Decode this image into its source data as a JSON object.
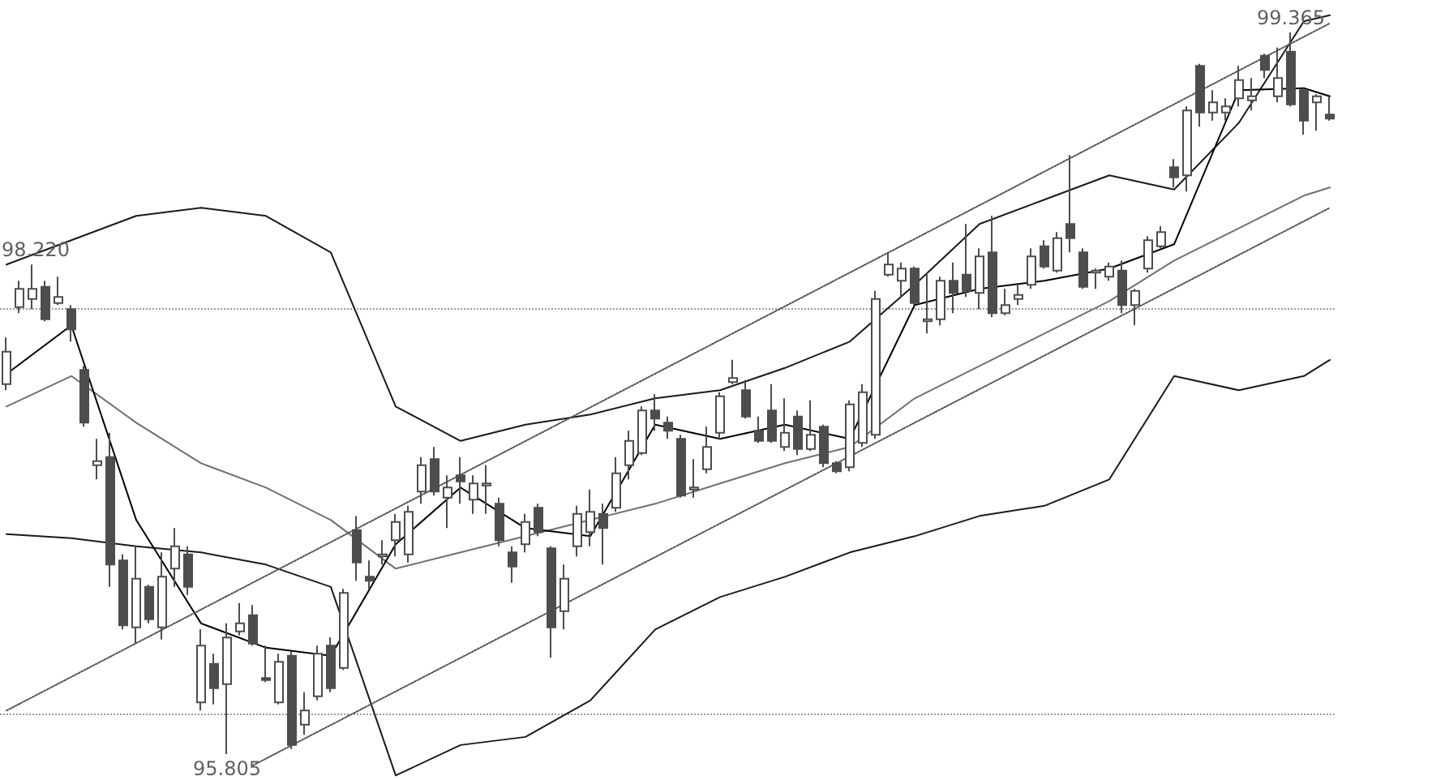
{
  "chart_data": {
    "type": "candlestick",
    "categories": [
      null,
      null,
      null,
      null,
      null,
      null,
      null,
      null,
      null,
      null,
      null,
      null,
      null,
      null,
      null,
      null,
      null,
      null,
      null,
      null,
      null,
      null,
      null,
      null,
      null,
      null,
      null,
      null,
      null,
      null,
      null,
      null,
      null,
      null,
      null,
      null,
      null,
      null,
      null,
      null,
      null,
      null,
      null,
      null,
      null,
      null,
      null,
      null,
      null,
      null,
      null,
      null,
      null,
      null,
      null,
      null,
      null,
      null,
      null,
      null,
      null,
      null,
      null,
      null,
      null,
      null,
      null,
      null,
      null,
      null,
      null,
      null,
      null,
      null,
      null,
      null,
      null,
      null,
      null,
      null,
      null,
      null,
      null,
      null,
      null,
      null,
      null,
      null,
      null,
      null,
      null,
      null,
      null,
      null,
      null,
      null,
      null,
      null,
      null,
      null,
      null,
      null,
      null
    ],
    "yticks": [
      {
        "value": 96,
        "label": null
      },
      {
        "value": 98,
        "label": null
      }
    ],
    "grid": "y",
    "tick_labels": false,
    "marker": "none",
    "annotations": [
      {
        "text": "98.220",
        "y": 98.22
      },
      {
        "text": "99.365",
        "y": 99.365
      },
      {
        "text": "95.805",
        "y": 95.805
      }
    ],
    "series": [
      {
        "type": "line",
        "color": "#1a1a1a",
        "values": [
          98.22,
          null,
          null,
          null,
          null,
          98.34,
          null,
          null,
          null,
          null,
          98.46,
          null,
          null,
          null,
          null,
          98.5,
          null,
          null,
          null,
          null,
          98.46,
          null,
          null,
          null,
          null,
          98.28,
          null,
          null,
          null,
          null,
          97.52,
          null,
          null,
          null,
          null,
          97.35,
          null,
          null,
          null,
          null,
          97.43,
          null,
          null,
          null,
          null,
          97.48,
          null,
          null,
          null,
          null,
          97.56,
          null,
          null,
          null,
          null,
          97.6,
          null,
          null,
          null,
          null,
          97.71,
          null,
          null,
          null,
          null,
          97.84,
          null,
          null,
          null,
          null,
          98.12,
          null,
          null,
          null,
          null,
          98.42,
          null,
          null,
          null,
          null,
          98.54,
          null,
          null,
          null,
          null,
          98.66,
          null,
          null,
          null,
          null,
          98.59,
          null,
          null,
          null,
          null,
          98.92,
          null,
          null,
          null,
          null,
          99.42,
          null,
          99.45
        ]
      },
      {
        "type": "line",
        "color": "#1a1a1a",
        "values": [
          96.89,
          null,
          null,
          null,
          null,
          96.87,
          null,
          null,
          null,
          null,
          96.83,
          null,
          null,
          null,
          null,
          96.8,
          null,
          null,
          null,
          null,
          96.74,
          null,
          null,
          null,
          null,
          96.63,
          null,
          null,
          null,
          null,
          95.7,
          null,
          null,
          null,
          null,
          95.85,
          null,
          null,
          null,
          null,
          95.89,
          null,
          null,
          null,
          null,
          96.07,
          null,
          null,
          null,
          null,
          96.42,
          null,
          null,
          null,
          null,
          96.58,
          null,
          null,
          null,
          null,
          96.68,
          null,
          null,
          null,
          null,
          96.8,
          null,
          null,
          null,
          null,
          96.88,
          null,
          null,
          null,
          null,
          96.98,
          null,
          null,
          null,
          null,
          97.03,
          null,
          null,
          null,
          null,
          97.16,
          null,
          null,
          null,
          null,
          97.67,
          null,
          null,
          null,
          null,
          97.6,
          null,
          null,
          null,
          null,
          97.67,
          null,
          97.75
        ]
      },
      {
        "type": "line",
        "color": "#707070",
        "values": [
          97.52,
          null,
          null,
          null,
          null,
          97.67,
          null,
          null,
          null,
          null,
          97.44,
          null,
          null,
          null,
          null,
          97.24,
          null,
          null,
          null,
          null,
          97.12,
          null,
          null,
          null,
          null,
          96.96,
          null,
          null,
          null,
          null,
          96.72,
          null,
          null,
          null,
          null,
          96.8,
          null,
          null,
          null,
          null,
          96.88,
          null,
          null,
          null,
          null,
          96.96,
          null,
          null,
          null,
          null,
          97.04,
          null,
          null,
          null,
          null,
          97.14,
          null,
          null,
          null,
          null,
          97.24,
          null,
          null,
          null,
          null,
          97.32,
          null,
          null,
          null,
          null,
          97.56,
          null,
          null,
          null,
          null,
          97.72,
          null,
          null,
          null,
          null,
          97.88,
          null,
          null,
          null,
          null,
          98.04,
          null,
          null,
          null,
          null,
          98.24,
          null,
          null,
          null,
          null,
          98.4,
          null,
          null,
          null,
          null,
          98.56,
          null,
          98.6
        ]
      },
      {
        "type": "line",
        "color": "#000000",
        "values": [
          97.68,
          null,
          null,
          null,
          null,
          97.92,
          null,
          null,
          null,
          null,
          96.96,
          null,
          null,
          null,
          null,
          96.45,
          null,
          null,
          null,
          null,
          96.33,
          null,
          null,
          null,
          null,
          96.29,
          null,
          null,
          null,
          null,
          96.84,
          null,
          null,
          null,
          null,
          97.12,
          null,
          null,
          null,
          null,
          96.92,
          null,
          null,
          null,
          null,
          96.88,
          null,
          null,
          null,
          null,
          97.43,
          null,
          null,
          null,
          null,
          97.36,
          null,
          null,
          null,
          null,
          97.43,
          null,
          null,
          null,
          null,
          97.36,
          null,
          null,
          null,
          null,
          98.02,
          null,
          null,
          null,
          null,
          98.1,
          null,
          null,
          null,
          null,
          98.14,
          null,
          null,
          null,
          null,
          98.2,
          null,
          null,
          null,
          null,
          98.32,
          null,
          null,
          null,
          null,
          99.08,
          null,
          null,
          null,
          null,
          99.09,
          null,
          99.05
        ]
      },
      {
        "type": "line",
        "color": "#555555",
        "line_style": "dotted",
        "values": [
          96.02,
          null,
          null,
          null,
          null,
          null,
          null,
          null,
          null,
          null,
          null,
          null,
          null,
          null,
          null,
          null,
          null,
          null,
          null,
          null,
          null,
          null,
          null,
          null,
          null,
          null,
          null,
          null,
          null,
          null,
          null,
          null,
          null,
          null,
          null,
          null,
          null,
          null,
          null,
          null,
          null,
          null,
          null,
          null,
          null,
          null,
          null,
          null,
          null,
          null,
          null,
          null,
          null,
          null,
          null,
          null,
          null,
          null,
          null,
          null,
          null,
          null,
          null,
          null,
          null,
          null,
          null,
          null,
          null,
          null,
          null,
          null,
          null,
          null,
          null,
          null,
          null,
          null,
          null,
          null,
          null,
          null,
          null,
          null,
          null,
          null,
          null,
          null,
          null,
          null,
          null,
          null,
          null,
          null,
          null,
          null,
          null,
          null,
          null,
          null,
          null,
          null,
          99.41
        ]
      },
      {
        "type": "line",
        "color": "#555555",
        "line_style": "dotted",
        "values": [
          null,
          null,
          null,
          null,
          null,
          null,
          null,
          null,
          null,
          null,
          null,
          null,
          null,
          null,
          null,
          null,
          null,
          null,
          null,
          95.75,
          null,
          null,
          null,
          null,
          null,
          null,
          null,
          null,
          null,
          null,
          null,
          null,
          null,
          null,
          null,
          null,
          null,
          null,
          null,
          null,
          null,
          null,
          null,
          null,
          null,
          null,
          null,
          null,
          null,
          null,
          null,
          null,
          null,
          null,
          null,
          null,
          null,
          null,
          null,
          null,
          null,
          null,
          null,
          null,
          null,
          null,
          null,
          null,
          null,
          null,
          null,
          null,
          null,
          null,
          null,
          null,
          null,
          null,
          null,
          null,
          null,
          null,
          null,
          null,
          null,
          null,
          null,
          null,
          null,
          null,
          null,
          null,
          null,
          null,
          null,
          null,
          null,
          null,
          null,
          null,
          null,
          null,
          98.5
        ]
      },
      {
        "color": "#4d4d4d",
        "ohlc": [
          [
            97.63,
            97.86,
            97.6,
            97.79
          ],
          [
            98.01,
            98.14,
            97.98,
            98.1
          ],
          [
            98.05,
            98.22,
            98.0,
            98.1
          ],
          [
            98.11,
            98.14,
            97.94,
            97.95
          ],
          [
            98.03,
            98.16,
            98.02,
            98.06
          ],
          [
            98.0,
            98.02,
            97.84,
            97.9
          ],
          [
            97.7,
            97.72,
            97.42,
            97.44
          ],
          [
            97.23,
            97.36,
            97.16,
            97.25
          ],
          [
            97.27,
            97.39,
            96.63,
            96.74
          ],
          [
            96.76,
            96.79,
            96.42,
            96.44
          ],
          [
            96.43,
            96.83,
            96.35,
            96.67
          ],
          [
            96.63,
            96.64,
            96.45,
            96.47
          ],
          [
            96.43,
            96.8,
            96.37,
            96.68
          ],
          [
            96.72,
            96.92,
            96.63,
            96.83
          ],
          [
            96.79,
            96.83,
            96.59,
            96.63
          ],
          [
            96.06,
            96.42,
            96.02,
            96.34
          ],
          [
            96.25,
            96.3,
            96.05,
            96.13
          ],
          [
            96.15,
            96.45,
            95.805,
            96.38
          ],
          [
            96.41,
            96.55,
            96.39,
            96.45
          ],
          [
            96.49,
            96.54,
            96.34,
            96.35
          ],
          [
            96.18,
            96.34,
            96.16,
            96.17
          ],
          [
            96.06,
            96.3,
            96.05,
            96.26
          ],
          [
            96.29,
            96.31,
            95.83,
            95.85
          ],
          [
            95.95,
            96.11,
            95.9,
            96.02
          ],
          [
            96.09,
            96.34,
            96.07,
            96.3
          ],
          [
            96.34,
            96.38,
            96.11,
            96.13
          ],
          [
            96.23,
            96.62,
            96.22,
            96.6
          ],
          [
            96.91,
            96.98,
            96.66,
            96.75
          ],
          [
            96.68,
            96.76,
            96.62,
            96.66
          ],
          [
            96.78,
            96.86,
            96.74,
            96.79
          ],
          [
            96.86,
            96.99,
            96.78,
            96.95
          ],
          [
            96.79,
            97.03,
            96.75,
            97.0
          ],
          [
            97.1,
            97.27,
            97.04,
            97.23
          ],
          [
            97.26,
            97.32,
            97.08,
            97.1
          ],
          [
            97.07,
            97.18,
            96.92,
            97.12
          ],
          [
            97.18,
            97.27,
            97.04,
            97.15
          ],
          [
            97.06,
            97.18,
            96.99,
            97.14
          ],
          [
            97.13,
            97.23,
            96.99,
            97.14
          ],
          [
            97.04,
            97.07,
            96.83,
            96.86
          ],
          [
            96.8,
            96.83,
            96.65,
            96.73
          ],
          [
            96.84,
            96.99,
            96.8,
            96.95
          ],
          [
            97.02,
            97.04,
            96.88,
            96.9
          ],
          [
            96.82,
            96.83,
            96.28,
            96.43
          ],
          [
            96.51,
            96.74,
            96.42,
            96.67
          ],
          [
            96.83,
            97.03,
            96.78,
            96.99
          ],
          [
            96.9,
            97.11,
            96.83,
            97.0
          ],
          [
            96.99,
            97.04,
            96.74,
            96.92
          ],
          [
            97.02,
            97.27,
            97.0,
            97.19
          ],
          [
            97.23,
            97.4,
            97.16,
            97.35
          ],
          [
            97.29,
            97.52,
            97.28,
            97.5
          ],
          [
            97.5,
            97.58,
            97.4,
            97.46
          ],
          [
            97.44,
            97.47,
            97.36,
            97.4
          ],
          [
            97.36,
            97.38,
            97.07,
            97.08
          ],
          [
            97.11,
            97.26,
            97.07,
            97.12
          ],
          [
            97.21,
            97.42,
            97.19,
            97.32
          ],
          [
            97.39,
            97.59,
            97.36,
            97.57
          ],
          [
            97.64,
            97.75,
            97.63,
            97.66
          ],
          [
            97.6,
            97.65,
            97.46,
            97.47
          ],
          [
            97.4,
            97.47,
            97.34,
            97.35
          ],
          [
            97.5,
            97.63,
            97.34,
            97.35
          ],
          [
            97.32,
            97.56,
            97.3,
            97.39
          ],
          [
            97.47,
            97.5,
            97.28,
            97.31
          ],
          [
            97.31,
            97.55,
            97.3,
            97.38
          ],
          [
            97.42,
            97.43,
            97.22,
            97.24
          ],
          [
            97.24,
            97.25,
            97.19,
            97.2
          ],
          [
            97.22,
            97.55,
            97.2,
            97.53
          ],
          [
            97.34,
            97.63,
            97.32,
            97.59
          ],
          [
            97.38,
            98.09,
            97.36,
            98.05
          ],
          [
            98.17,
            98.28,
            98.16,
            98.22
          ],
          [
            98.14,
            98.23,
            98.06,
            98.2
          ],
          [
            98.2,
            98.21,
            98.02,
            98.03
          ],
          [
            97.94,
            98.18,
            97.88,
            97.95
          ],
          [
            97.95,
            98.16,
            97.92,
            98.14
          ],
          [
            98.14,
            98.23,
            97.98,
            98.08
          ],
          [
            98.17,
            98.42,
            98.06,
            98.09
          ],
          [
            98.08,
            98.3,
            98.0,
            98.26
          ],
          [
            98.28,
            98.46,
            97.96,
            97.98
          ],
          [
            97.98,
            98.1,
            97.97,
            98.02
          ],
          [
            98.05,
            98.12,
            98.02,
            98.07
          ],
          [
            98.12,
            98.3,
            98.1,
            98.26
          ],
          [
            98.31,
            98.34,
            98.2,
            98.21
          ],
          [
            98.19,
            98.38,
            98.18,
            98.35
          ],
          [
            98.42,
            98.76,
            98.28,
            98.35
          ],
          [
            98.28,
            98.3,
            98.1,
            98.11
          ],
          [
            98.18,
            98.2,
            98.1,
            98.19
          ],
          [
            98.16,
            98.23,
            98.14,
            98.21
          ],
          [
            98.19,
            98.24,
            97.98,
            98.02
          ],
          [
            98.02,
            98.1,
            97.92,
            98.09
          ],
          [
            98.2,
            98.36,
            98.18,
            98.34
          ],
          [
            98.31,
            98.41,
            98.3,
            98.38
          ],
          [
            98.7,
            98.74,
            98.6,
            98.65
          ],
          [
            98.66,
            99.0,
            98.58,
            98.98
          ],
          [
            99.2,
            99.21,
            98.9,
            98.97
          ],
          [
            98.97,
            99.08,
            98.93,
            99.02
          ],
          [
            98.97,
            99.04,
            98.93,
            99.0
          ],
          [
            99.04,
            99.2,
            99.0,
            99.13
          ],
          [
            99.03,
            99.14,
            98.98,
            99.05
          ],
          [
            99.25,
            99.26,
            99.14,
            99.18
          ],
          [
            99.05,
            99.29,
            99.02,
            99.14
          ],
          [
            99.27,
            99.365,
            99.0,
            99.01
          ],
          [
            99.08,
            99.09,
            98.86,
            98.93
          ],
          [
            99.02,
            99.06,
            98.88,
            99.05
          ],
          [
            98.96,
            99.05,
            98.93,
            98.94
          ]
        ]
      }
    ]
  }
}
